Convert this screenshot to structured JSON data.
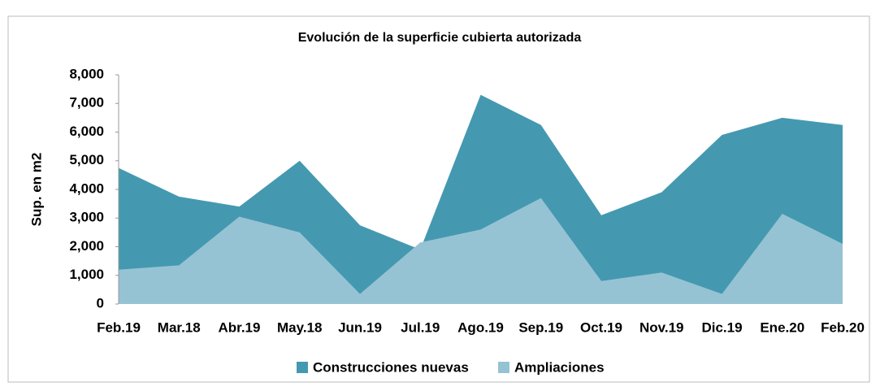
{
  "chart_data": {
    "type": "area",
    "title": "Evolución de la superficie cubierta autorizada",
    "y_label": "Sup. en m2",
    "categories": [
      "Feb.19",
      "Mar.18",
      "Abr.19",
      "May.18",
      "Jun.19",
      "Jul.19",
      "Ago.19",
      "Sep.19",
      "Oct.19",
      "Nov.19",
      "Dic.19",
      "Ene.20",
      "Feb.20"
    ],
    "series": [
      {
        "name": "Construcciones nuevas",
        "color": "#4499b0",
        "values": [
          4750,
          3750,
          3400,
          5000,
          2750,
          1900,
          7300,
          6250,
          3100,
          3900,
          5900,
          6500,
          6250
        ]
      },
      {
        "name": "Ampliaciones",
        "color": "#96c3d4",
        "values": [
          1200,
          1350,
          3050,
          2500,
          350,
          2150,
          2600,
          3700,
          800,
          1100,
          350,
          3150,
          2100
        ]
      }
    ],
    "ylim": [
      0,
      8000
    ],
    "yticks": [
      0,
      {
        "value": 1000,
        "label": "1,000"
      },
      {
        "value": 2000,
        "label": "2,000"
      },
      {
        "value": 3000,
        "label": "3,000"
      },
      {
        "value": 4000,
        "label": "4,000"
      },
      {
        "value": 5000,
        "label": "5,000"
      },
      {
        "value": 6000,
        "label": "6,000"
      },
      {
        "value": 7000,
        "label": "7,000"
      },
      {
        "value": 8000,
        "label": "8,000"
      }
    ],
    "legend": "bottom"
  }
}
